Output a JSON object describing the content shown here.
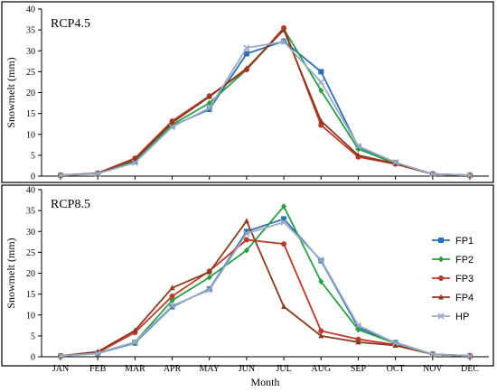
{
  "chart_data": [
    {
      "type": "line",
      "title": "RCP4.5",
      "xlabel": "",
      "ylabel": "Snowmelt (mm)",
      "ylim": [
        0,
        40
      ],
      "yticks": [
        0,
        5,
        10,
        15,
        20,
        25,
        30,
        35,
        40
      ],
      "categories": [
        "JAN",
        "FEB",
        "MAR",
        "APR",
        "MAY",
        "JUN",
        "JUL",
        "AUG",
        "SEP",
        "OCT",
        "NOV",
        "DEC"
      ],
      "show_x_tick_labels": false,
      "grid": false,
      "series": [
        {
          "name": "FP1",
          "color": "#2e6fb5",
          "marker": "square",
          "values": [
            0.2,
            0.6,
            3.5,
            12.0,
            16.0,
            29.3,
            32.3,
            25.0,
            7.0,
            3.2,
            0.5,
            0.2
          ]
        },
        {
          "name": "FP2",
          "color": "#27a045",
          "marker": "diamond",
          "values": [
            0.2,
            0.6,
            3.8,
            12.3,
            17.5,
            25.5,
            35.2,
            20.5,
            6.5,
            3.0,
            0.5,
            0.2
          ]
        },
        {
          "name": "FP3",
          "color": "#c0392b",
          "marker": "circle",
          "values": [
            0.2,
            0.7,
            4.3,
            13.2,
            19.2,
            25.5,
            35.5,
            12.2,
            4.6,
            2.9,
            0.5,
            0.2
          ]
        },
        {
          "name": "FP4",
          "color": "#8b3a1e",
          "marker": "triangle",
          "values": [
            0.2,
            0.7,
            4.0,
            12.8,
            19.0,
            25.8,
            35.0,
            13.2,
            5.0,
            3.0,
            0.5,
            0.2
          ]
        },
        {
          "name": "HP",
          "color": "#9aabc4",
          "marker": "x",
          "values": [
            0.2,
            0.6,
            3.2,
            11.8,
            16.3,
            30.7,
            32.2,
            22.5,
            7.2,
            3.3,
            0.5,
            0.2
          ]
        }
      ]
    },
    {
      "type": "line",
      "title": "RCP8.5",
      "xlabel": "Month",
      "ylabel": "Snowmelt (mm)",
      "ylim": [
        0,
        40
      ],
      "yticks": [
        0,
        5,
        10,
        15,
        20,
        25,
        30,
        35,
        40
      ],
      "categories": [
        "JAN",
        "FEB",
        "MAR",
        "APR",
        "MAY",
        "JUN",
        "JUL",
        "AUG",
        "SEP",
        "OCT",
        "NOV",
        "DEC"
      ],
      "show_x_tick_labels": true,
      "grid": false,
      "legend": "right",
      "series": [
        {
          "name": "FP1",
          "color": "#2e6fb5",
          "marker": "square",
          "values": [
            0.2,
            0.8,
            3.3,
            12.0,
            16.2,
            30.0,
            33.0,
            23.0,
            7.0,
            3.4,
            0.6,
            0.2
          ]
        },
        {
          "name": "FP2",
          "color": "#27a045",
          "marker": "diamond",
          "values": [
            0.2,
            0.9,
            3.5,
            13.5,
            19.0,
            25.5,
            36.0,
            18.0,
            6.5,
            3.2,
            0.6,
            0.2
          ]
        },
        {
          "name": "FP3",
          "color": "#c0392b",
          "marker": "circle",
          "values": [
            0.2,
            1.0,
            5.8,
            14.5,
            20.5,
            28.0,
            27.0,
            6.2,
            4.2,
            2.9,
            0.6,
            0.2
          ]
        },
        {
          "name": "FP4",
          "color": "#8b3a1e",
          "marker": "triangle",
          "values": [
            0.2,
            1.2,
            6.3,
            16.5,
            20.3,
            32.5,
            12.0,
            5.0,
            3.5,
            2.7,
            0.6,
            0.2
          ]
        },
        {
          "name": "HP",
          "color": "#9aabc4",
          "marker": "x",
          "values": [
            0.2,
            0.8,
            3.5,
            12.2,
            16.0,
            29.5,
            32.2,
            23.2,
            7.5,
            3.3,
            0.6,
            0.2
          ]
        }
      ]
    }
  ]
}
